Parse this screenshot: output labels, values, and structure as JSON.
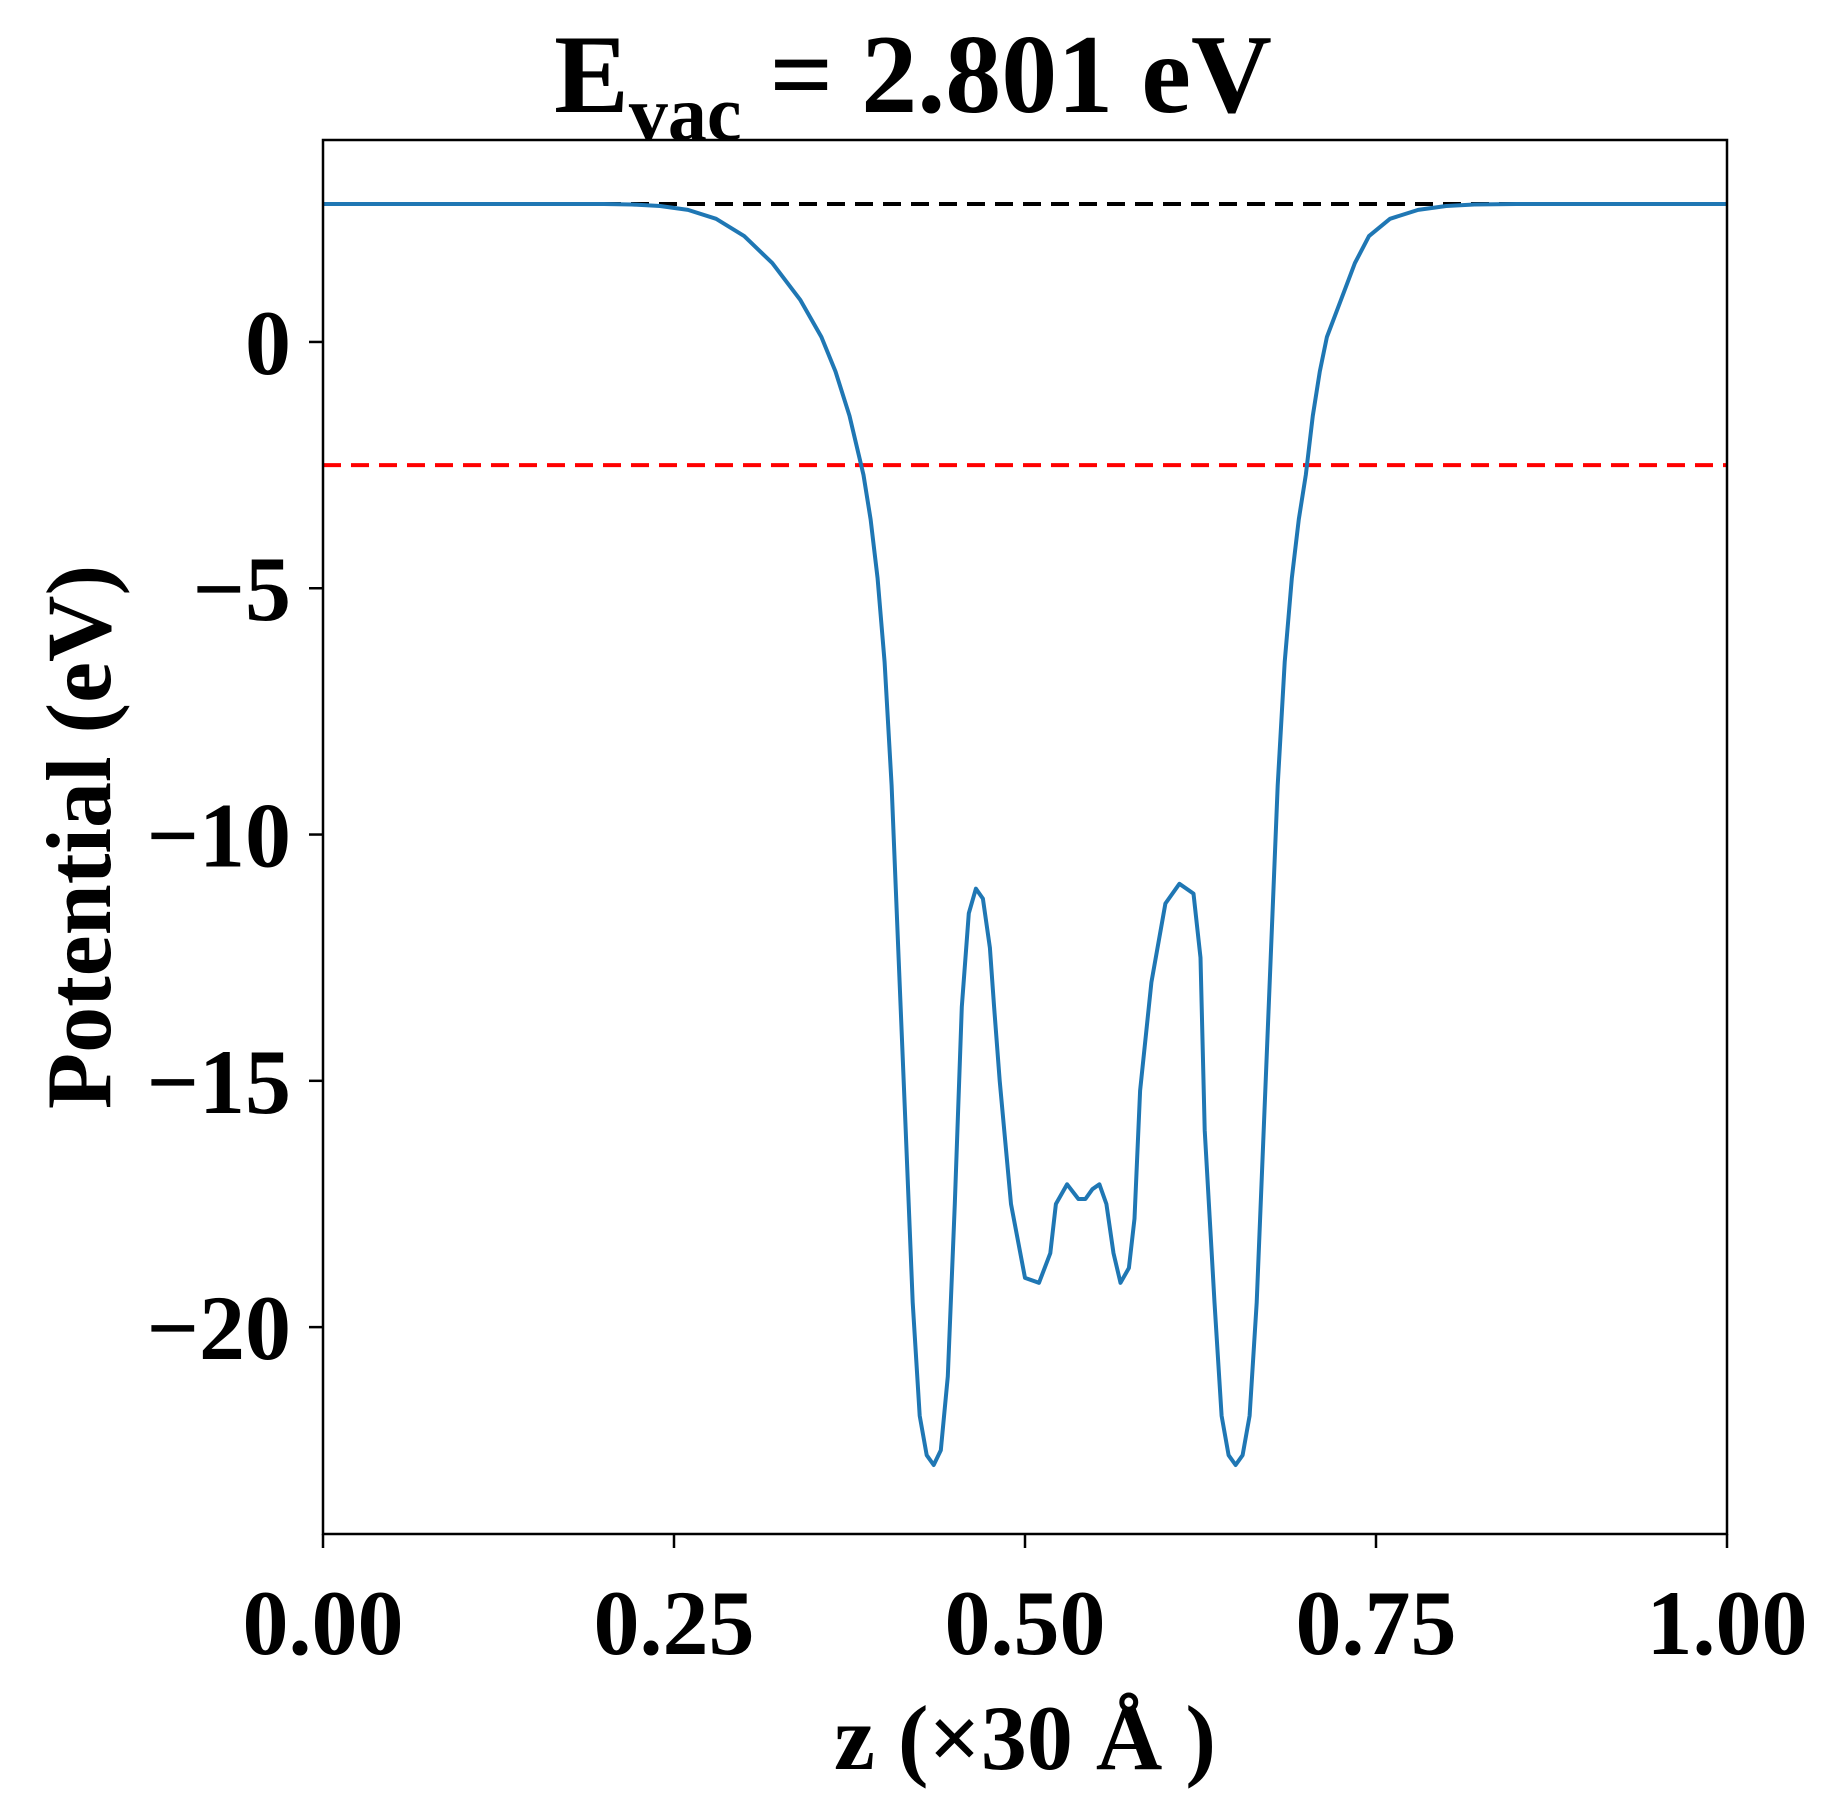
{
  "chart_data": {
    "type": "line",
    "title": {
      "main": "E",
      "subscript": "vac",
      "rest": " = 2.801 eV"
    },
    "xlabel": "z (×30 Å )",
    "ylabel": "Potential (eV)",
    "xlim": [
      0.0,
      1.0
    ],
    "ylim": [
      -24.2,
      4.1
    ],
    "x_ticks": [
      {
        "value": 0.0,
        "label": "0.00"
      },
      {
        "value": 0.25,
        "label": "0.25"
      },
      {
        "value": 0.5,
        "label": "0.50"
      },
      {
        "value": 0.75,
        "label": "0.75"
      },
      {
        "value": 1.0,
        "label": "1.00"
      }
    ],
    "y_ticks": [
      {
        "value": 0,
        "label": "0"
      },
      {
        "value": -5,
        "label": "−5"
      },
      {
        "value": -10,
        "label": "−10"
      },
      {
        "value": -15,
        "label": "−15"
      },
      {
        "value": -20,
        "label": "−20"
      }
    ],
    "grid": false,
    "reference_lines": [
      {
        "y": 2.801,
        "color": "#000000",
        "style": "dashed"
      },
      {
        "y": -2.5,
        "color": "#ff0000",
        "style": "dashed"
      }
    ],
    "series": [
      {
        "color": "#1f77b4",
        "x": [
          0.0,
          0.05,
          0.1,
          0.15,
          0.2,
          0.22,
          0.24,
          0.26,
          0.28,
          0.3,
          0.32,
          0.34,
          0.355,
          0.365,
          0.375,
          0.385,
          0.39,
          0.395,
          0.4,
          0.405,
          0.41,
          0.415,
          0.42,
          0.425,
          0.43,
          0.435,
          0.44,
          0.445,
          0.45,
          0.455,
          0.46,
          0.465,
          0.47,
          0.475,
          0.478,
          0.482,
          0.49,
          0.5,
          0.51,
          0.518,
          0.522,
          0.53,
          0.538,
          0.543,
          0.548,
          0.553,
          0.558,
          0.563,
          0.568,
          0.574,
          0.578,
          0.582,
          0.59,
          0.6,
          0.61,
          0.62,
          0.625,
          0.628,
          0.635,
          0.64,
          0.645,
          0.65,
          0.655,
          0.66,
          0.665,
          0.67,
          0.675,
          0.68,
          0.685,
          0.69,
          0.695,
          0.7,
          0.705,
          0.71,
          0.715,
          0.725,
          0.735,
          0.745,
          0.76,
          0.78,
          0.8,
          0.82,
          0.85,
          0.9,
          0.95,
          1.0
        ],
        "y": [
          2.801,
          2.801,
          2.801,
          2.801,
          2.801,
          2.79,
          2.76,
          2.68,
          2.5,
          2.15,
          1.6,
          0.85,
          0.1,
          -0.6,
          -1.5,
          -2.7,
          -3.6,
          -4.8,
          -6.5,
          -9.0,
          -12.5,
          -16.0,
          -19.5,
          -21.8,
          -22.6,
          -22.8,
          -22.5,
          -21.0,
          -17.5,
          -13.5,
          -11.6,
          -11.1,
          -11.3,
          -12.3,
          -13.5,
          -15.0,
          -17.5,
          -19.0,
          -19.1,
          -18.5,
          -17.5,
          -17.1,
          -17.4,
          -17.4,
          -17.2,
          -17.1,
          -17.5,
          -18.5,
          -19.1,
          -18.8,
          -17.8,
          -15.2,
          -13.0,
          -11.4,
          -11.0,
          -11.2,
          -12.5,
          -16.0,
          -19.5,
          -21.8,
          -22.6,
          -22.8,
          -22.6,
          -21.8,
          -19.5,
          -16.0,
          -12.5,
          -9.0,
          -6.5,
          -4.8,
          -3.6,
          -2.7,
          -1.5,
          -0.6,
          0.1,
          0.85,
          1.6,
          2.15,
          2.5,
          2.68,
          2.76,
          2.79,
          2.801,
          2.801,
          2.801,
          2.801
        ]
      }
    ]
  }
}
